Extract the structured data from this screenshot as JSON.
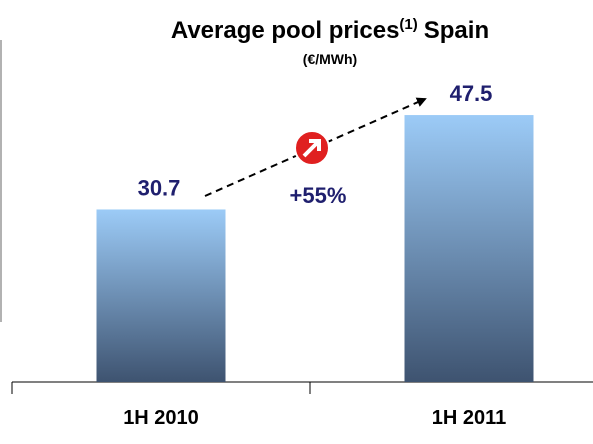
{
  "chart_data": {
    "type": "bar",
    "title": {
      "text": "Average pool prices",
      "note": "(1)",
      "suffix": "Spain"
    },
    "subtitle": "(€/MWh)",
    "annotation": "+55%",
    "categories": [
      "1H 2010",
      "1H 2011"
    ],
    "values": [
      30.7,
      47.5
    ],
    "color": [
      "#9ccbf7",
      "#3e5370"
    ]
  }
}
